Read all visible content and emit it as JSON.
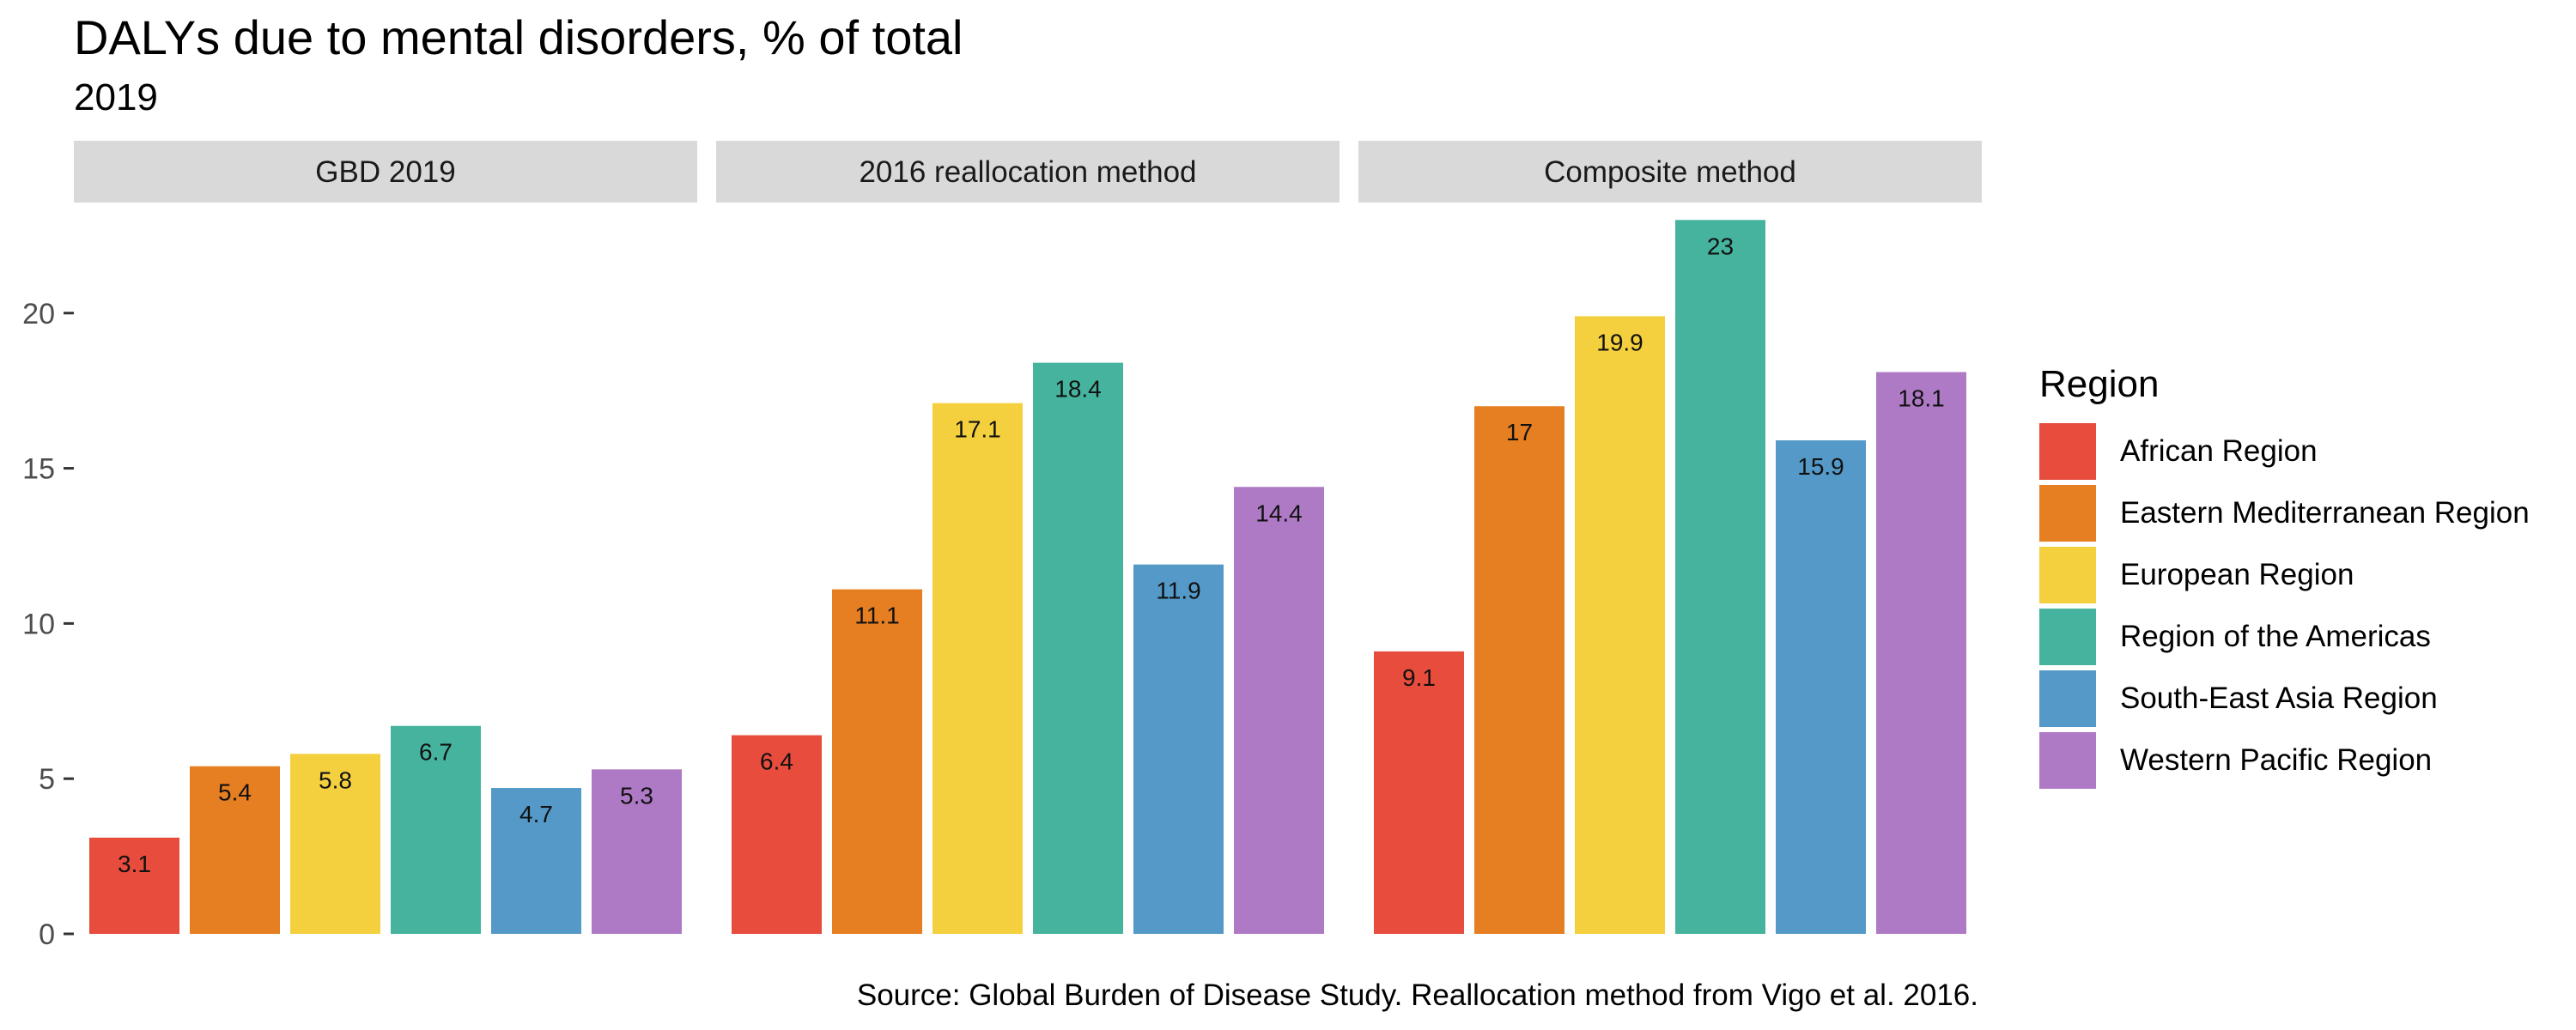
{
  "title": "DALYs due to mental disorders, % of total",
  "subtitle": "2019",
  "caption": "Source: Global Burden of Disease Study. Reallocation method from Vigo et al. 2016.",
  "legend": {
    "title": "Region"
  },
  "chart_data": {
    "type": "bar",
    "title": "DALYs due to mental disorders, % of total",
    "subtitle": "2019",
    "xlabel": "",
    "ylabel": "",
    "ylim": [
      0,
      23
    ],
    "yticks": [
      0,
      5,
      10,
      15,
      20
    ],
    "grid": false,
    "legend_position": "right",
    "facets": [
      "GBD 2019",
      "2016 reallocation method",
      "Composite method"
    ],
    "categories": [
      "African Region",
      "Eastern Mediterranean Region",
      "European Region",
      "Region of the Americas",
      "South-East Asia Region",
      "Western Pacific Region"
    ],
    "colors": [
      "#E74C3C",
      "#E67E22",
      "#F4D03F",
      "#45B39D",
      "#5499C7",
      "#AF7AC5"
    ],
    "series": [
      {
        "facet": "GBD 2019",
        "values": [
          3.1,
          5.4,
          5.8,
          6.7,
          4.7,
          5.3
        ]
      },
      {
        "facet": "2016 reallocation method",
        "values": [
          6.4,
          11.1,
          17.1,
          18.4,
          11.9,
          14.4
        ]
      },
      {
        "facet": "Composite method",
        "values": [
          9.1,
          17,
          19.9,
          23,
          15.9,
          18.1
        ]
      }
    ]
  }
}
